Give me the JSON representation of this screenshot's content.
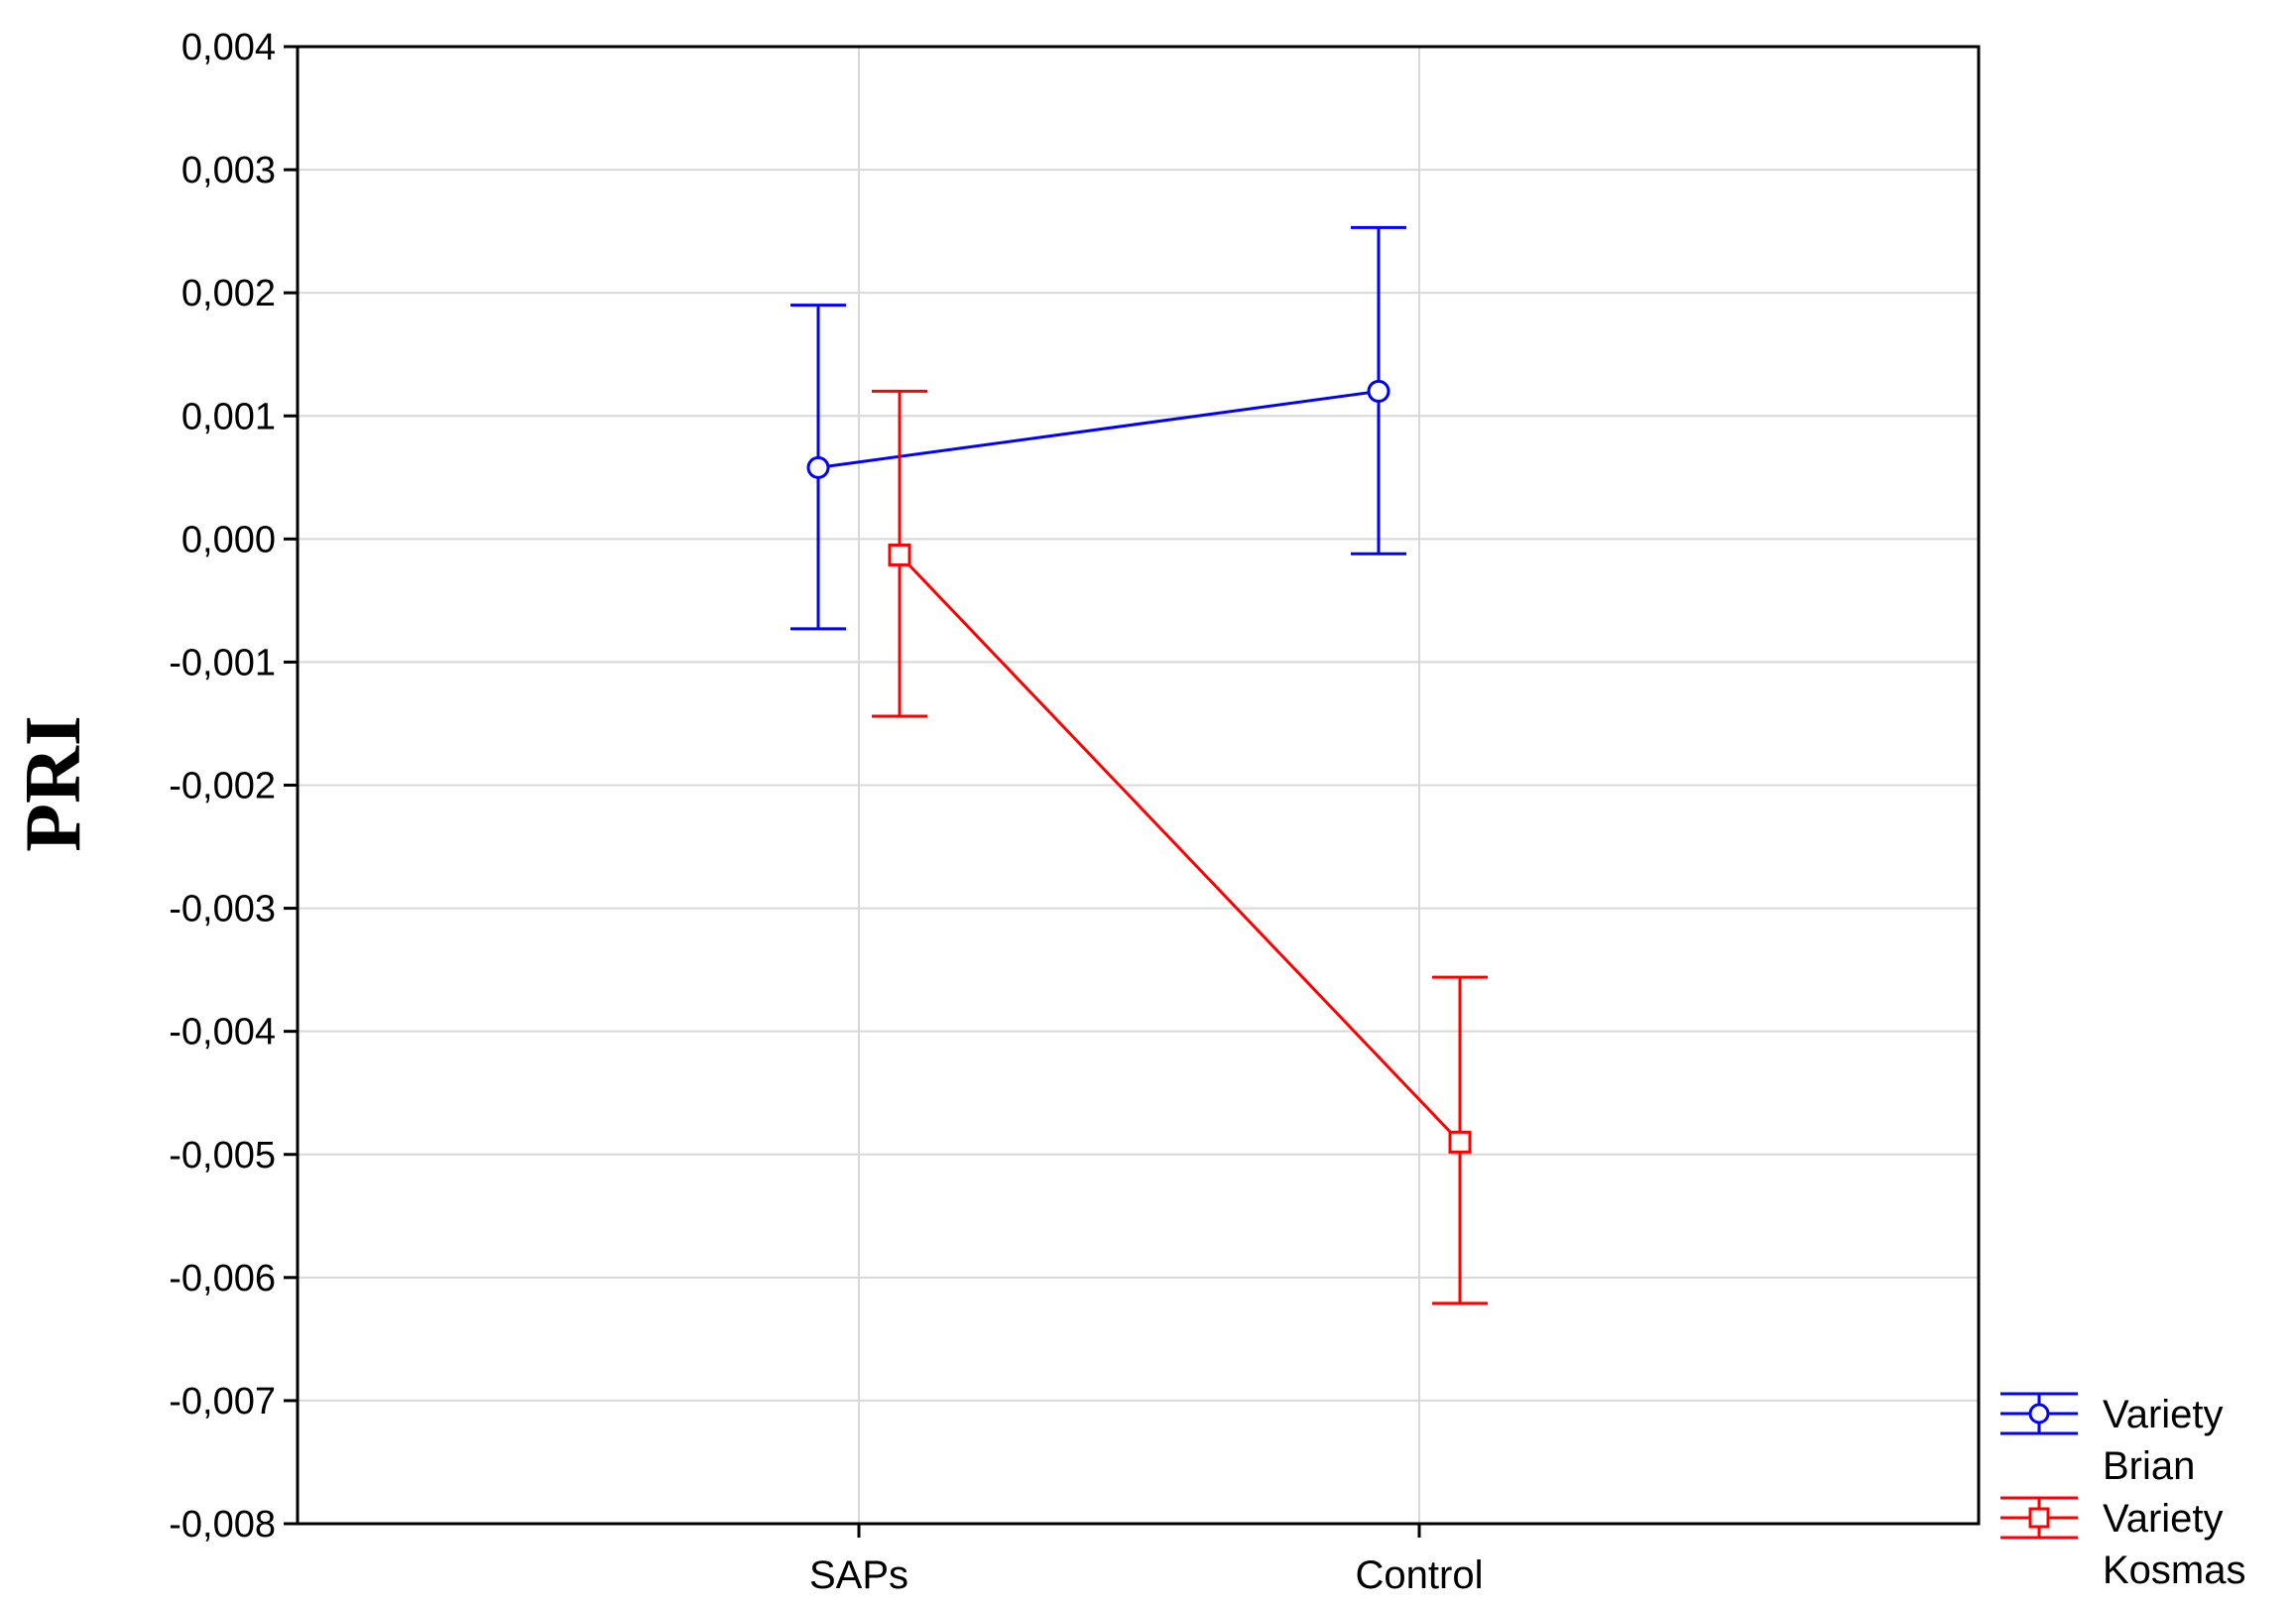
{
  "chart_data": {
    "type": "line",
    "title": "",
    "xlabel": "",
    "ylabel": "PRI",
    "categories": [
      "SAPs",
      "Control"
    ],
    "ylim": [
      -0.008,
      0.004
    ],
    "yticks": [
      0.004,
      0.003,
      0.002,
      0.001,
      0.0,
      -0.001,
      -0.002,
      -0.003,
      -0.004,
      -0.005,
      -0.006,
      -0.007,
      -0.008
    ],
    "ytick_labels": [
      "0,004",
      "0,003",
      "0,002",
      "0,001",
      "0,000",
      "-0,001",
      "-0,002",
      "-0,003",
      "-0,004",
      "-0,005",
      "-0,006",
      "-0,007",
      "-0,008"
    ],
    "grid": true,
    "legend_position": "bottom-right-outside",
    "series": [
      {
        "name": "Variety Brian",
        "name_lines": [
          "Variety",
          "Brian"
        ],
        "color": "#0000ff",
        "marker": "circle",
        "values": [
          0.00058,
          0.0012
        ],
        "error_lower": [
          -0.00073,
          -0.00012
        ],
        "error_upper": [
          0.0019,
          0.00253
        ]
      },
      {
        "name": "Variety Kosmas",
        "name_lines": [
          "Variety",
          "Kosmas"
        ],
        "color": "#ff0000",
        "marker": "square",
        "values": [
          -0.00013,
          -0.0049
        ],
        "error_lower": [
          -0.00144,
          -0.00621
        ],
        "error_upper": [
          0.0012,
          -0.00356
        ]
      }
    ]
  }
}
